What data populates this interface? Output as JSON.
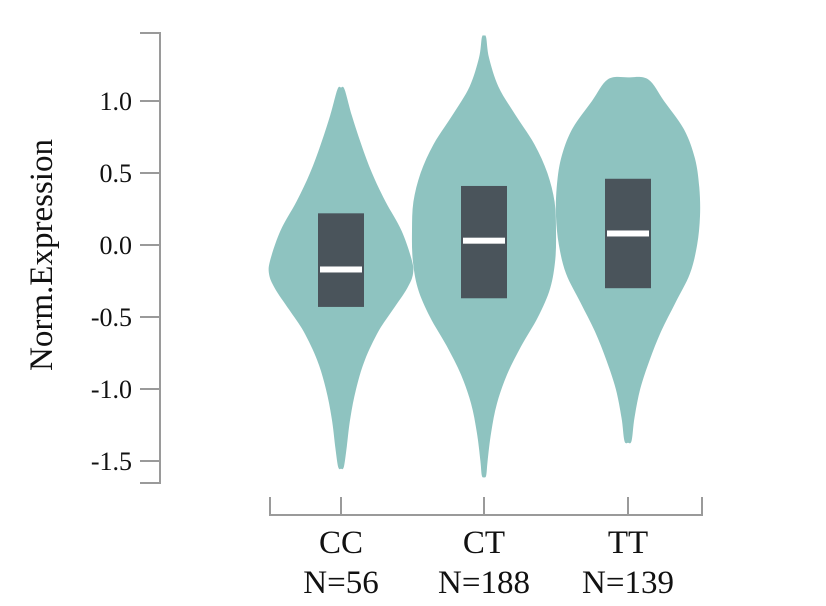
{
  "chart_data": {
    "type": "violin",
    "ylabel": "Norm.Expression",
    "xlabel": "",
    "ylim": [
      -1.6,
      1.5
    ],
    "yticks": [
      1.0,
      0.5,
      0.0,
      -0.5,
      -1.0,
      -1.5
    ],
    "ytick_labels": [
      "1.0",
      "0.5",
      "0.0",
      "-0.5",
      "-1.0",
      "-1.5"
    ],
    "colors": {
      "violin": "#8ec3c0",
      "box": "#4a545b",
      "median": "#ffffff",
      "axis": "#9a9a9a"
    },
    "groups": [
      {
        "name": "CC",
        "n_label": "N=56",
        "median": -0.17,
        "q1": -0.43,
        "q3": 0.22,
        "min": -1.54,
        "max": 1.08,
        "density": [
          [
            1.08,
            0.05
          ],
          [
            0.9,
            0.15
          ],
          [
            0.7,
            0.28
          ],
          [
            0.5,
            0.43
          ],
          [
            0.3,
            0.62
          ],
          [
            0.1,
            0.84
          ],
          [
            -0.1,
            0.98
          ],
          [
            -0.2,
            1.0
          ],
          [
            -0.3,
            0.92
          ],
          [
            -0.45,
            0.72
          ],
          [
            -0.6,
            0.52
          ],
          [
            -0.8,
            0.33
          ],
          [
            -1.0,
            0.21
          ],
          [
            -1.2,
            0.13
          ],
          [
            -1.4,
            0.08
          ],
          [
            -1.54,
            0.04
          ]
        ]
      },
      {
        "name": "CT",
        "n_label": "N=188",
        "median": 0.03,
        "q1": -0.37,
        "q3": 0.41,
        "min": -1.6,
        "max": 1.44,
        "density": [
          [
            1.44,
            0.03
          ],
          [
            1.3,
            0.07
          ],
          [
            1.1,
            0.2
          ],
          [
            0.9,
            0.44
          ],
          [
            0.7,
            0.7
          ],
          [
            0.5,
            0.88
          ],
          [
            0.3,
            0.98
          ],
          [
            0.1,
            1.0
          ],
          [
            -0.1,
            0.99
          ],
          [
            -0.3,
            0.92
          ],
          [
            -0.5,
            0.75
          ],
          [
            -0.7,
            0.52
          ],
          [
            -0.9,
            0.32
          ],
          [
            -1.1,
            0.18
          ],
          [
            -1.3,
            0.1
          ],
          [
            -1.5,
            0.05
          ],
          [
            -1.6,
            0.03
          ]
        ]
      },
      {
        "name": "TT",
        "n_label": "N=139",
        "median": 0.08,
        "q1": -0.3,
        "q3": 0.46,
        "min": -1.36,
        "max": 1.15,
        "density": [
          [
            1.15,
            0.28
          ],
          [
            1.0,
            0.5
          ],
          [
            0.8,
            0.78
          ],
          [
            0.6,
            0.93
          ],
          [
            0.4,
            0.99
          ],
          [
            0.2,
            1.0
          ],
          [
            0.0,
            0.96
          ],
          [
            -0.2,
            0.86
          ],
          [
            -0.4,
            0.66
          ],
          [
            -0.6,
            0.46
          ],
          [
            -0.8,
            0.3
          ],
          [
            -1.0,
            0.17
          ],
          [
            -1.2,
            0.09
          ],
          [
            -1.36,
            0.05
          ]
        ]
      }
    ]
  }
}
